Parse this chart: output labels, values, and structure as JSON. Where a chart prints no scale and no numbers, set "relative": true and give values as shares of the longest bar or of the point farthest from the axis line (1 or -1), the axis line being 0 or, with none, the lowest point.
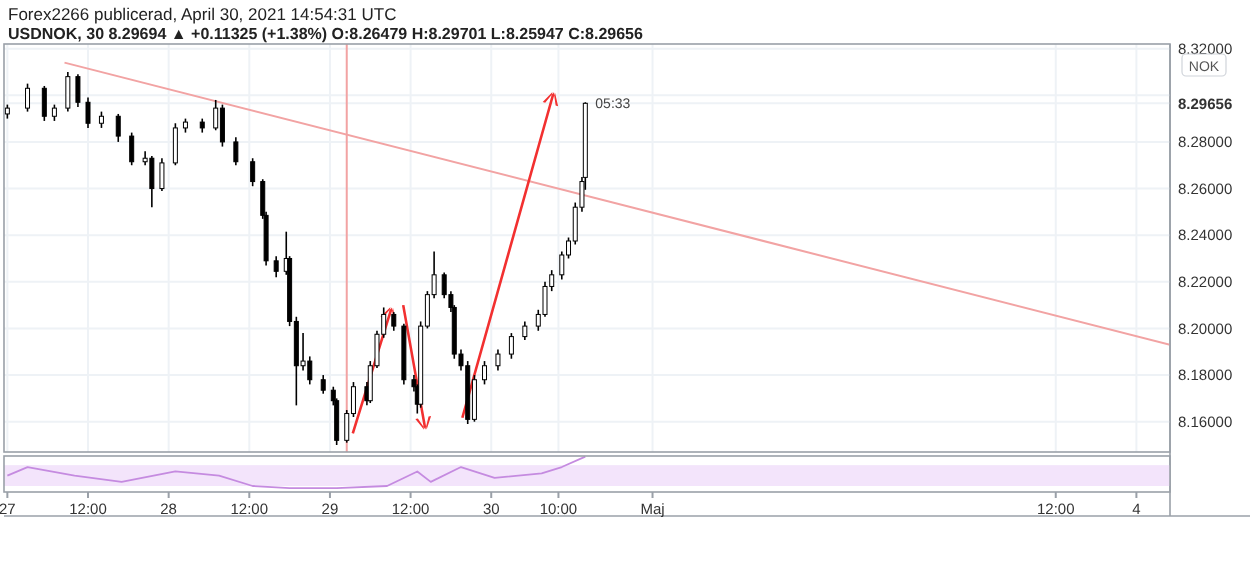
{
  "chart_data": [
    {
      "type": "candlestick",
      "title": "Forex2266 publicerad, April 30, 2021 14:54:31 UTC",
      "subtitle": "USDNOK, 30 8.29694 ▲ +0.11325 (+1.38%) O:8.26479 H:8.29701 L:8.25947 C:8.29656",
      "ylabel": "NOK",
      "annotations": [
        {
          "text": "05:33",
          "x": "2021-04-30T14:00",
          "y": 8.29656
        }
      ],
      "x": [
        "2021-04-27T00:00",
        "2021-04-27T03:00",
        "2021-04-27T05:30",
        "2021-04-27T07:00",
        "2021-04-27T09:00",
        "2021-04-27T10:30",
        "2021-04-27T12:00",
        "2021-04-27T14:00",
        "2021-04-27T16:30",
        "2021-04-27T18:30",
        "2021-04-27T20:30",
        "2021-04-27T21:30",
        "2021-04-27T23:00",
        "2021-04-28T01:00",
        "2021-04-28T02:30",
        "2021-04-28T05:00",
        "2021-04-28T07:00",
        "2021-04-28T08:00",
        "2021-04-28T10:00",
        "2021-04-28T12:30",
        "2021-04-28T14:00",
        "2021-04-28T14:30",
        "2021-04-28T16:00",
        "2021-04-28T17:30",
        "2021-04-28T18:00",
        "2021-04-28T19:00",
        "2021-04-28T20:00",
        "2021-04-28T21:00",
        "2021-04-28T23:00",
        "2021-04-29T00:30",
        "2021-04-29T01:00",
        "2021-04-29T02:30",
        "2021-04-29T03:30",
        "2021-04-29T05:30",
        "2021-04-29T06:00",
        "2021-04-29T07:00",
        "2021-04-29T08:00",
        "2021-04-29T09:30",
        "2021-04-29T11:00",
        "2021-04-29T12:30",
        "2021-04-29T13:00",
        "2021-04-29T13:30",
        "2021-04-29T14:30",
        "2021-04-29T15:30",
        "2021-04-29T17:00",
        "2021-04-29T18:00",
        "2021-04-29T18:30",
        "2021-04-29T19:30",
        "2021-04-29T20:30",
        "2021-04-29T21:30",
        "2021-04-29T23:00",
        "2021-04-30T01:00",
        "2021-04-30T03:00",
        "2021-04-30T05:00",
        "2021-04-30T07:00",
        "2021-04-30T08:00",
        "2021-04-30T09:00",
        "2021-04-30T10:30",
        "2021-04-30T11:30",
        "2021-04-30T12:30",
        "2021-04-30T13:30",
        "2021-04-30T14:00"
      ],
      "ohlc": [
        [
          8.292,
          8.296,
          8.29,
          8.2945
        ],
        [
          8.2945,
          8.305,
          8.293,
          8.303
        ],
        [
          8.303,
          8.304,
          8.289,
          8.291
        ],
        [
          8.291,
          8.296,
          8.289,
          8.2945
        ],
        [
          8.2945,
          8.31,
          8.293,
          8.308
        ],
        [
          8.308,
          8.309,
          8.295,
          8.297
        ],
        [
          8.297,
          8.299,
          8.286,
          8.288
        ],
        [
          8.288,
          8.293,
          8.286,
          8.291
        ],
        [
          8.291,
          8.292,
          8.28,
          8.2825
        ],
        [
          8.2825,
          8.284,
          8.27,
          8.2715
        ],
        [
          8.2715,
          8.276,
          8.27,
          8.273
        ],
        [
          8.273,
          8.274,
          8.252,
          8.26
        ],
        [
          8.26,
          8.273,
          8.259,
          8.271
        ],
        [
          8.271,
          8.288,
          8.27,
          8.286
        ],
        [
          8.286,
          8.29,
          8.284,
          8.2885
        ],
        [
          8.2885,
          8.29,
          8.284,
          8.286
        ],
        [
          8.286,
          8.298,
          8.285,
          8.2945
        ],
        [
          8.2945,
          8.296,
          8.278,
          8.28
        ],
        [
          8.28,
          8.282,
          8.27,
          8.2715
        ],
        [
          8.2715,
          8.273,
          8.261,
          8.263
        ],
        [
          8.263,
          8.264,
          8.247,
          8.2485
        ],
        [
          8.2485,
          8.25,
          8.227,
          8.229
        ],
        [
          8.229,
          8.231,
          8.222,
          8.2245
        ],
        [
          8.2245,
          8.2415,
          8.223,
          8.23
        ],
        [
          8.23,
          8.231,
          8.201,
          8.203
        ],
        [
          8.203,
          8.205,
          8.167,
          8.184
        ],
        [
          8.184,
          8.198,
          8.182,
          8.186
        ],
        [
          8.186,
          8.188,
          8.176,
          8.178
        ],
        [
          8.178,
          8.18,
          8.172,
          8.1735
        ],
        [
          8.1735,
          8.175,
          8.167,
          8.169
        ],
        [
          8.169,
          8.17,
          8.15,
          8.152
        ],
        [
          8.152,
          8.165,
          8.151,
          8.1635
        ],
        [
          8.1635,
          8.177,
          8.162,
          8.175
        ],
        [
          8.175,
          8.177,
          8.167,
          8.169
        ],
        [
          8.169,
          8.186,
          8.168,
          8.184
        ],
        [
          8.184,
          8.199,
          8.183,
          8.1975
        ],
        [
          8.1975,
          8.209,
          8.196,
          8.206
        ],
        [
          8.206,
          8.207,
          8.199,
          8.201
        ],
        [
          8.201,
          8.202,
          8.176,
          8.178
        ],
        [
          8.178,
          8.18,
          8.173,
          8.175
        ],
        [
          8.175,
          8.176,
          8.1635,
          8.1675
        ],
        [
          8.1675,
          8.203,
          8.166,
          8.201
        ],
        [
          8.201,
          8.216,
          8.2,
          8.2145
        ],
        [
          8.2145,
          8.233,
          8.213,
          8.223
        ],
        [
          8.223,
          8.224,
          8.213,
          8.2145
        ],
        [
          8.2145,
          8.216,
          8.207,
          8.209
        ],
        [
          8.209,
          8.21,
          8.187,
          8.189
        ],
        [
          8.189,
          8.191,
          8.182,
          8.184
        ],
        [
          8.184,
          8.186,
          8.159,
          8.161
        ],
        [
          8.161,
          8.18,
          8.16,
          8.178
        ],
        [
          8.178,
          8.186,
          8.176,
          8.184
        ],
        [
          8.184,
          8.191,
          8.182,
          8.189
        ],
        [
          8.189,
          8.198,
          8.187,
          8.1965
        ],
        [
          8.1965,
          8.203,
          8.195,
          8.201
        ],
        [
          8.201,
          8.208,
          8.199,
          8.206
        ],
        [
          8.206,
          8.22,
          8.205,
          8.218
        ],
        [
          8.218,
          8.225,
          8.216,
          8.223
        ],
        [
          8.223,
          8.233,
          8.221,
          8.2315
        ],
        [
          8.2315,
          8.239,
          8.23,
          8.2375
        ],
        [
          8.2375,
          8.254,
          8.236,
          8.252
        ],
        [
          8.252,
          8.265,
          8.25,
          8.263
        ],
        [
          8.26479,
          8.29701,
          8.25947,
          8.29656
        ]
      ],
      "series": [
        {
          "type": "line",
          "color": "#f2a3a3",
          "x": [
            "2021-04-27T08:30",
            "2021-05-04T05:00"
          ],
          "values": [
            8.314,
            8.193
          ]
        }
      ],
      "ref_lines": [
        {
          "axis": "x",
          "value": "2021-04-29T02:30",
          "color": "#f2a3a3"
        }
      ],
      "xlim": [
        "2021-04-26T23:30",
        "2021-05-04T05:00"
      ],
      "xticks": [
        "2021-04-27",
        "2021-04-27T12:00",
        "2021-04-28",
        "2021-04-28T12:00",
        "2021-04-29",
        "2021-04-29T12:00",
        "2021-04-30",
        "2021-04-30T10:00",
        "2021-05-01",
        "2021-05-03T12:00",
        "2021-05-04"
      ],
      "ylim": [
        8.147,
        8.322
      ],
      "yticks": [
        {
          "value": 8.16,
          "label": "8.16000"
        },
        {
          "value": 8.18,
          "label": "8.18000"
        },
        {
          "value": 8.2,
          "label": "8.20000"
        },
        {
          "value": 8.22,
          "label": "8.22000"
        },
        {
          "value": 8.24,
          "label": "8.24000"
        },
        {
          "value": 8.26,
          "label": "8.26000"
        },
        {
          "value": 8.28,
          "label": "8.28000"
        },
        {
          "value": 8.29656,
          "label": "8.29656"
        },
        {
          "value": 8.3,
          "label": null
        },
        {
          "value": 8.32,
          "label": "8.32000"
        }
      ],
      "grid": true,
      "tick_labels": "y"
    },
    {
      "type": "line",
      "relative": true,
      "x": [
        "2021-04-27T00:00",
        "2021-04-27T03:00",
        "2021-04-27T10:00",
        "2021-04-27T17:00",
        "2021-04-28T01:00",
        "2021-04-28T07:30",
        "2021-04-28T12:30",
        "2021-04-28T18:00",
        "2021-04-29T01:00",
        "2021-04-29T08:30",
        "2021-04-29T13:00",
        "2021-04-29T15:00",
        "2021-04-29T19:30",
        "2021-04-30T00:30",
        "2021-04-30T07:30",
        "2021-04-30T10:30",
        "2021-04-30T14:00"
      ],
      "series": [
        {
          "color": "#c58be0",
          "values": [
            0.4,
            0.67,
            0.4,
            0.2,
            0.53,
            0.4,
            0.07,
            0,
            0,
            0.07,
            0.53,
            0.2,
            0.67,
            0.33,
            0.47,
            0.67,
            1
          ]
        }
      ],
      "bands": [
        {
          "axis": "y",
          "from": 0.07,
          "to": 0.73,
          "color": "#f3e4fb"
        }
      ],
      "xlim": [
        "2021-04-26T23:30",
        "2021-05-04T05:00"
      ],
      "xticks": [
        {
          "value": "2021-04-27",
          "label": "27"
        },
        {
          "value": "2021-04-27T12:00",
          "label": "12:00"
        },
        {
          "value": "2021-04-28",
          "label": "28"
        },
        {
          "value": "2021-04-28T12:00",
          "label": "12:00"
        },
        {
          "value": "2021-04-29",
          "label": "29"
        },
        {
          "value": "2021-04-29T12:00",
          "label": "12:00"
        },
        {
          "value": "2021-04-30",
          "label": "30"
        },
        {
          "value": "2021-04-30T10:00",
          "label": "10:00"
        },
        {
          "value": "2021-05-01",
          "label": "Maj"
        },
        {
          "value": "2021-05-03T12:00",
          "label": "12:00"
        },
        {
          "value": "2021-05-04",
          "label": "4"
        }
      ],
      "tick_labels": "x"
    }
  ]
}
